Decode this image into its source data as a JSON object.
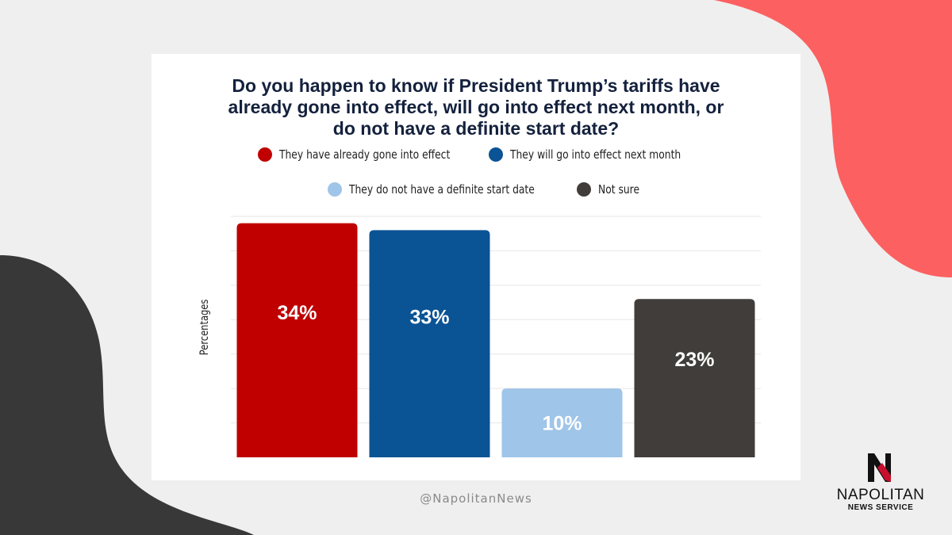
{
  "colors": {
    "background": "#efefef",
    "accent_coral": "#fd6060",
    "dark_shape": "#383838",
    "card": "#ffffff",
    "title": "#14213d"
  },
  "handle": "@NapolitanNews",
  "logo": {
    "name": "NAPOLITAN",
    "subtitle": "NEWS SERVICE"
  },
  "chart_data": {
    "type": "bar",
    "title": "Do you happen to know if President Trump’s tariffs have already gone into effect, will go into effect next month, or do not have a definite start date?",
    "title_lines": [
      "Do you happen to know if President Trump’s tariffs have",
      "already gone into effect, will go into effect next month, or",
      "do not have a definite start date?"
    ],
    "ylabel": "Percentages",
    "xlabel": "",
    "categories": [
      "They have already gone into effect",
      "They will go into effect next month",
      "They do not have a definite start date",
      "Not sure"
    ],
    "values": [
      34,
      33,
      10,
      23
    ],
    "data_labels": [
      "34%",
      "33%",
      "10%",
      "23%"
    ],
    "colors": [
      "#c00000",
      "#0a5394",
      "#9fc5e8",
      "#403d3a"
    ],
    "ylim": [
      0,
      35
    ],
    "grid": true,
    "legend_position": "top",
    "legend_rows": [
      [
        0,
        1
      ],
      [
        2,
        3
      ]
    ]
  }
}
